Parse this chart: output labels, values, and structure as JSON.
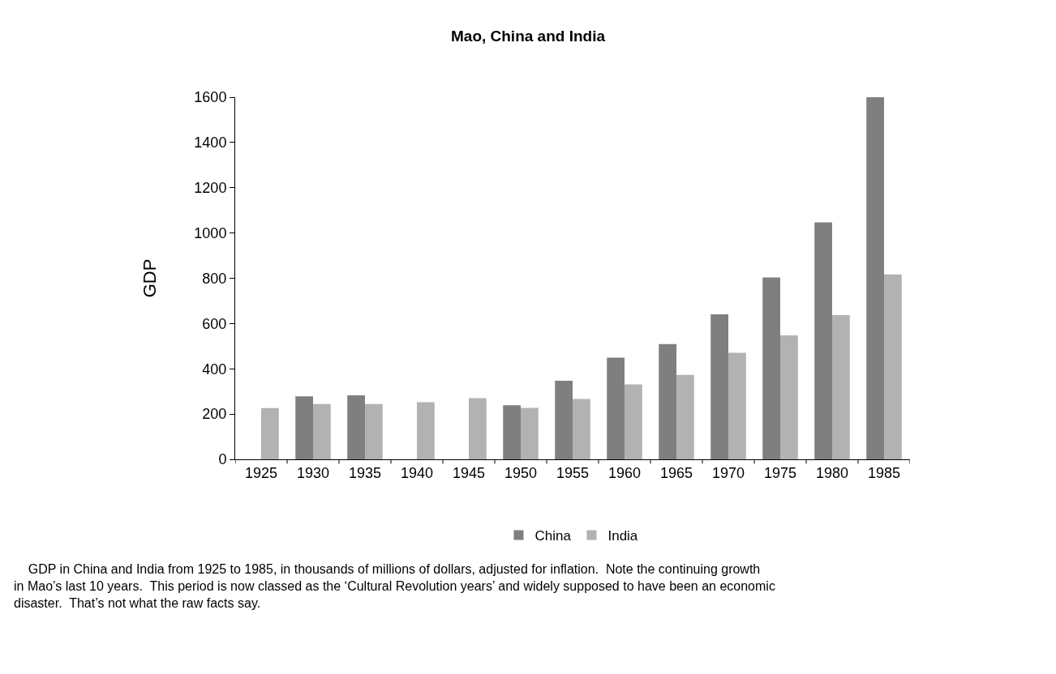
{
  "chart_data": {
    "type": "bar",
    "title": "Mao, China and India",
    "ylabel": "GDP",
    "categories": [
      "1925",
      "1930",
      "1935",
      "1940",
      "1945",
      "1950",
      "1955",
      "1960",
      "1965",
      "1970",
      "1975",
      "1980",
      "1985"
    ],
    "series": [
      {
        "name": "China",
        "color": "#7f7f7f",
        "values": [
          null,
          278,
          283,
          null,
          null,
          239,
          347,
          449,
          509,
          641,
          804,
          1047,
          1600
        ]
      },
      {
        "name": "India",
        "color": "#b2b2b2",
        "values": [
          226,
          244,
          244,
          252,
          270,
          227,
          267,
          331,
          373,
          471,
          548,
          637,
          817
        ]
      }
    ],
    "ylim": [
      0,
      1600
    ],
    "yticks": [
      0,
      200,
      400,
      600,
      800,
      1000,
      1200,
      1400,
      1600
    ],
    "legend": "bottom",
    "annotations": [
      "GDP in China and India from 1925 to 1985, in thousands of millions of dollars, adjusted for inflation.  Note the continuing growth in Mao’s last 10 years.  This period is now classed as the ‘Cultural Revolution years’ and widely supposed to have been an economic disaster.  That’s not what the raw facts say."
    ]
  }
}
